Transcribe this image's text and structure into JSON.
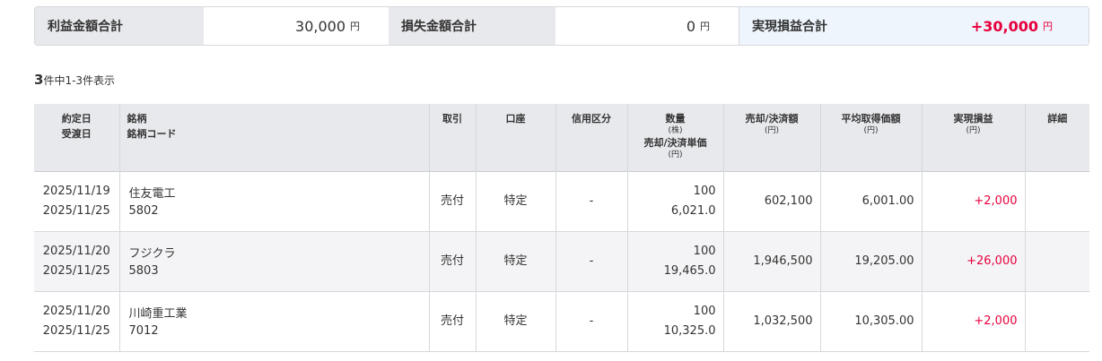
{
  "summary": {
    "profit_label": "利益金額合計",
    "profit_value": "30,000",
    "loss_label": "損失金額合計",
    "loss_value": "0",
    "realized_label": "実現損益合計",
    "realized_value": "+30,000",
    "unit": "円",
    "accent": "#e6003c"
  },
  "count": {
    "total": "3",
    "text": "件中1-3件表示"
  },
  "headers": {
    "date1": "約定日",
    "date2": "受渡日",
    "name1": "銘柄",
    "name2": "銘柄コード",
    "trade": "取引",
    "account": "口座",
    "credit": "信用区分",
    "qty": "数量",
    "qty_unit": "(株)",
    "price": "売却/決済単価",
    "yen": "(円)",
    "amount": "売却/決済額",
    "avg": "平均取得価額",
    "pl": "実現損益",
    "detail": "詳細"
  },
  "rows": [
    {
      "trade_date": "2025/11/19",
      "settle_date": "2025/11/25",
      "name": "住友電工",
      "code": "5802",
      "trade": "売付",
      "account": "特定",
      "credit": "-",
      "qty": "100",
      "price": "6,021.0",
      "amount": "602,100",
      "avg": "6,001.00",
      "pl": "+2,000"
    },
    {
      "trade_date": "2025/11/20",
      "settle_date": "2025/11/25",
      "name": "フジクラ",
      "code": "5803",
      "trade": "売付",
      "account": "特定",
      "credit": "-",
      "qty": "100",
      "price": "19,465.0",
      "amount": "1,946,500",
      "avg": "19,205.00",
      "pl": "+26,000"
    },
    {
      "trade_date": "2025/11/20",
      "settle_date": "2025/11/25",
      "name": "川崎重工業",
      "code": "7012",
      "trade": "売付",
      "account": "特定",
      "credit": "-",
      "qty": "100",
      "price": "10,325.0",
      "amount": "1,032,500",
      "avg": "10,305.00",
      "pl": "+2,000"
    }
  ]
}
